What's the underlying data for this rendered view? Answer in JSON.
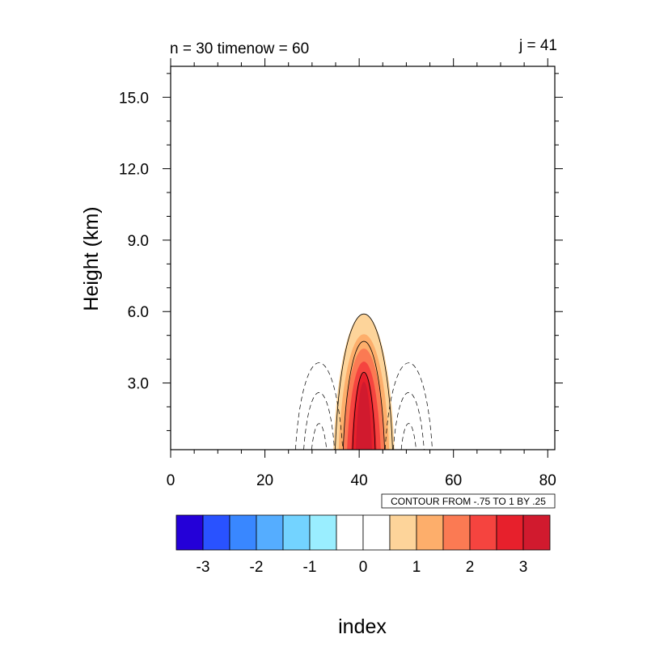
{
  "chart_data": {
    "type": "contour",
    "title_left": "n = 30 timenow = 60",
    "title_right": "j = 41",
    "xlabel": "index",
    "ylabel": "Height (km)",
    "xlim": [
      0,
      81.5
    ],
    "ylim": [
      0.2,
      16.3
    ],
    "x_ticks": [
      0,
      20,
      40,
      60,
      80
    ],
    "x_tick_labels": [
      "0",
      "20",
      "40",
      "60",
      "80"
    ],
    "y_ticks": [
      3,
      6,
      9,
      12,
      15
    ],
    "y_tick_labels": [
      "3.0",
      "6.0",
      "9.0",
      "12.0",
      "15.0"
    ],
    "contour_info": "CONTOUR FROM -.75 TO 1 BY .25",
    "filled_levels": [
      {
        "value_threshold": 0.5,
        "color": "#fdd49a",
        "half_width_x": 6.6,
        "top_km": 5.9
      },
      {
        "value_threshold": 1.0,
        "color": "#fdae6b",
        "half_width_x": 5.5,
        "top_km": 5.05
      },
      {
        "value_threshold": 1.5,
        "color": "#fb7a53",
        "half_width_x": 4.6,
        "top_km": 4.45
      },
      {
        "value_threshold": 2.0,
        "color": "#f5443f",
        "half_width_x": 3.7,
        "top_km": 3.9
      },
      {
        "value_threshold": 2.5,
        "color": "#e7202c",
        "half_width_x": 2.8,
        "top_km": 3.45
      },
      {
        "value_threshold": 3.0,
        "color": "#d11a2e",
        "half_width_x": 1.8,
        "top_km": 3.05
      }
    ],
    "solid_contours": [
      {
        "center_x": 41,
        "half_width_x": 6.2,
        "top_km": 5.9
      },
      {
        "center_x": 41,
        "half_width_x": 4.5,
        "top_km": 4.75
      },
      {
        "center_x": 41,
        "half_width_x": 2.5,
        "top_km": 3.45
      }
    ],
    "dashed_contours": [
      {
        "center_x": 31.5,
        "half_width_x": 5.2,
        "top_km": 3.85
      },
      {
        "center_x": 31.5,
        "half_width_x": 3.5,
        "top_km": 2.6
      },
      {
        "center_x": 31.5,
        "half_width_x": 1.9,
        "top_km": 1.3
      },
      {
        "center_x": 50.5,
        "half_width_x": 5.2,
        "top_km": 3.85
      },
      {
        "center_x": 50.5,
        "half_width_x": 3.5,
        "top_km": 2.6
      },
      {
        "center_x": 50.5,
        "half_width_x": 1.9,
        "top_km": 1.3
      }
    ],
    "peak_center_x": 41,
    "colorbar": {
      "colors": [
        "#2400d8",
        "#2952ff",
        "#3987ff",
        "#55adff",
        "#73d3ff",
        "#9aeeff",
        "#ffffff",
        "#ffffff",
        "#fdd49a",
        "#fdae6b",
        "#fb7a53",
        "#f5443f",
        "#e7202c",
        "#d11a2e"
      ],
      "tick_labels": [
        "-3",
        "-2",
        "-1",
        "0",
        "1",
        "2",
        "3"
      ]
    }
  }
}
